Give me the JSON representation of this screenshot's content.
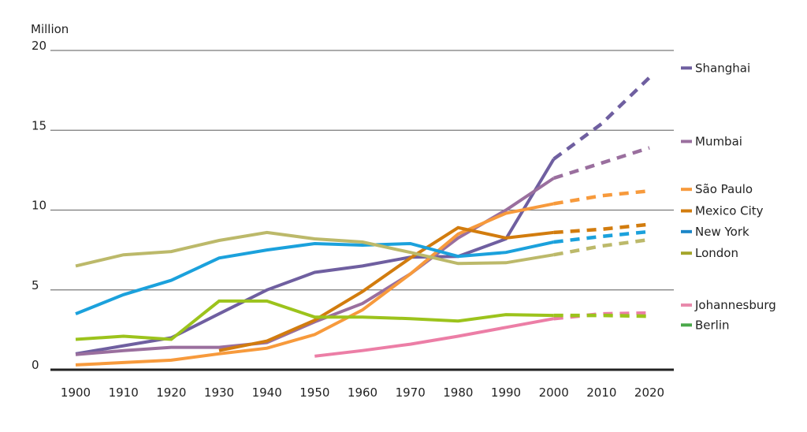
{
  "chart_data": {
    "type": "line",
    "title": "",
    "ylabel": "Million",
    "xlabel": "",
    "ylim": [
      0,
      20
    ],
    "yticks": [
      0,
      5,
      10,
      15,
      20
    ],
    "xlim": [
      1900,
      2020
    ],
    "xticks": [
      "1900",
      "1910",
      "1920",
      "1930",
      "1940",
      "1950",
      "1960",
      "1970",
      "1980",
      "1990",
      "2000",
      "2010",
      "2020"
    ],
    "grid": true,
    "legend_position": "right",
    "projection_note": "values after 2000 drawn dashed (projection)",
    "projection_start": 2000,
    "series": [
      {
        "name": "Shanghai",
        "color": "#6f5fa0",
        "legend_color": "#6f5fa0",
        "x": [
          1900,
          1910,
          1920,
          1930,
          1940,
          1950,
          1960,
          1970,
          1980,
          1990,
          2000,
          2010,
          2020
        ],
        "values": [
          1.0,
          1.5,
          2.0,
          3.5,
          5.0,
          6.1,
          6.5,
          7.05,
          7.1,
          8.2,
          13.2,
          15.4,
          18.3
        ]
      },
      {
        "name": "Mumbai",
        "color": "#9a6f9e",
        "legend_color": "#9a6f9e",
        "x": [
          1900,
          1910,
          1920,
          1930,
          1940,
          1950,
          1960,
          1970,
          1980,
          1990,
          2000,
          2010,
          2020
        ],
        "values": [
          0.95,
          1.2,
          1.4,
          1.4,
          1.7,
          3.0,
          4.15,
          6.0,
          8.25,
          10.0,
          12.0,
          12.95,
          13.9
        ]
      },
      {
        "name": "São Paulo",
        "color": "#f79a3c",
        "legend_color": "#f79a3c",
        "x": [
          1900,
          1910,
          1920,
          1930,
          1940,
          1950,
          1960,
          1970,
          1980,
          1990,
          2000,
          2010,
          2020
        ],
        "values": [
          0.3,
          0.45,
          0.6,
          1.0,
          1.35,
          2.2,
          3.75,
          6.0,
          8.5,
          9.8,
          10.4,
          10.9,
          11.2
        ]
      },
      {
        "name": "Mexico City",
        "color": "#d27c0e",
        "legend_color": "#d27c0e",
        "x": [
          1930,
          1940,
          1950,
          1960,
          1970,
          1980,
          1990,
          2000,
          2010,
          2020
        ],
        "values": [
          1.2,
          1.8,
          3.1,
          4.9,
          7.0,
          8.9,
          8.25,
          8.6,
          8.8,
          9.1
        ]
      },
      {
        "name": "New York",
        "color": "#1ba1dc",
        "legend_color": "#1b86c8",
        "x": [
          1900,
          1910,
          1920,
          1930,
          1940,
          1950,
          1960,
          1970,
          1980,
          1990,
          2000,
          2010,
          2020
        ],
        "values": [
          3.5,
          4.7,
          5.6,
          7.0,
          7.5,
          7.9,
          7.8,
          7.9,
          7.1,
          7.35,
          8.0,
          8.35,
          8.65
        ]
      },
      {
        "name": "London",
        "color": "#bcb96a",
        "legend_color": "#a4a52a",
        "x": [
          1900,
          1910,
          1920,
          1930,
          1940,
          1950,
          1960,
          1970,
          1980,
          1990,
          2000,
          2010,
          2020
        ],
        "values": [
          6.5,
          7.2,
          7.4,
          8.1,
          8.6,
          8.2,
          8.0,
          7.35,
          6.65,
          6.7,
          7.2,
          7.75,
          8.15
        ]
      },
      {
        "name": "Johannesburg",
        "color": "#ec7ea6",
        "legend_color": "#e88aac",
        "x": [
          1950,
          1960,
          1970,
          1980,
          1990,
          2000,
          2010,
          2020
        ],
        "values": [
          0.85,
          1.2,
          1.6,
          2.1,
          2.65,
          3.2,
          3.5,
          3.55
        ]
      },
      {
        "name": "Berlin",
        "color": "#9cc31c",
        "legend_color": "#4aa84a",
        "x": [
          1900,
          1910,
          1920,
          1930,
          1940,
          1950,
          1960,
          1970,
          1980,
          1990,
          2000,
          2010,
          2020
        ],
        "values": [
          1.9,
          2.1,
          1.9,
          4.3,
          4.3,
          3.3,
          3.3,
          3.2,
          3.05,
          3.45,
          3.4,
          3.4,
          3.35
        ]
      }
    ],
    "legend": [
      {
        "name": "Shanghai",
        "anchor_value": 18.9
      },
      {
        "name": "Mumbai",
        "anchor_value": 14.3
      },
      {
        "name": "São Paulo",
        "anchor_value": 11.3
      },
      {
        "name": "Mexico City",
        "anchor_value": 9.95
      },
      {
        "name": "New York",
        "anchor_value": 8.65
      },
      {
        "name": "London",
        "anchor_value": 7.3
      },
      {
        "name": "Johannesburg",
        "anchor_value": 4.05
      },
      {
        "name": "Berlin",
        "anchor_value": 2.8
      }
    ]
  }
}
